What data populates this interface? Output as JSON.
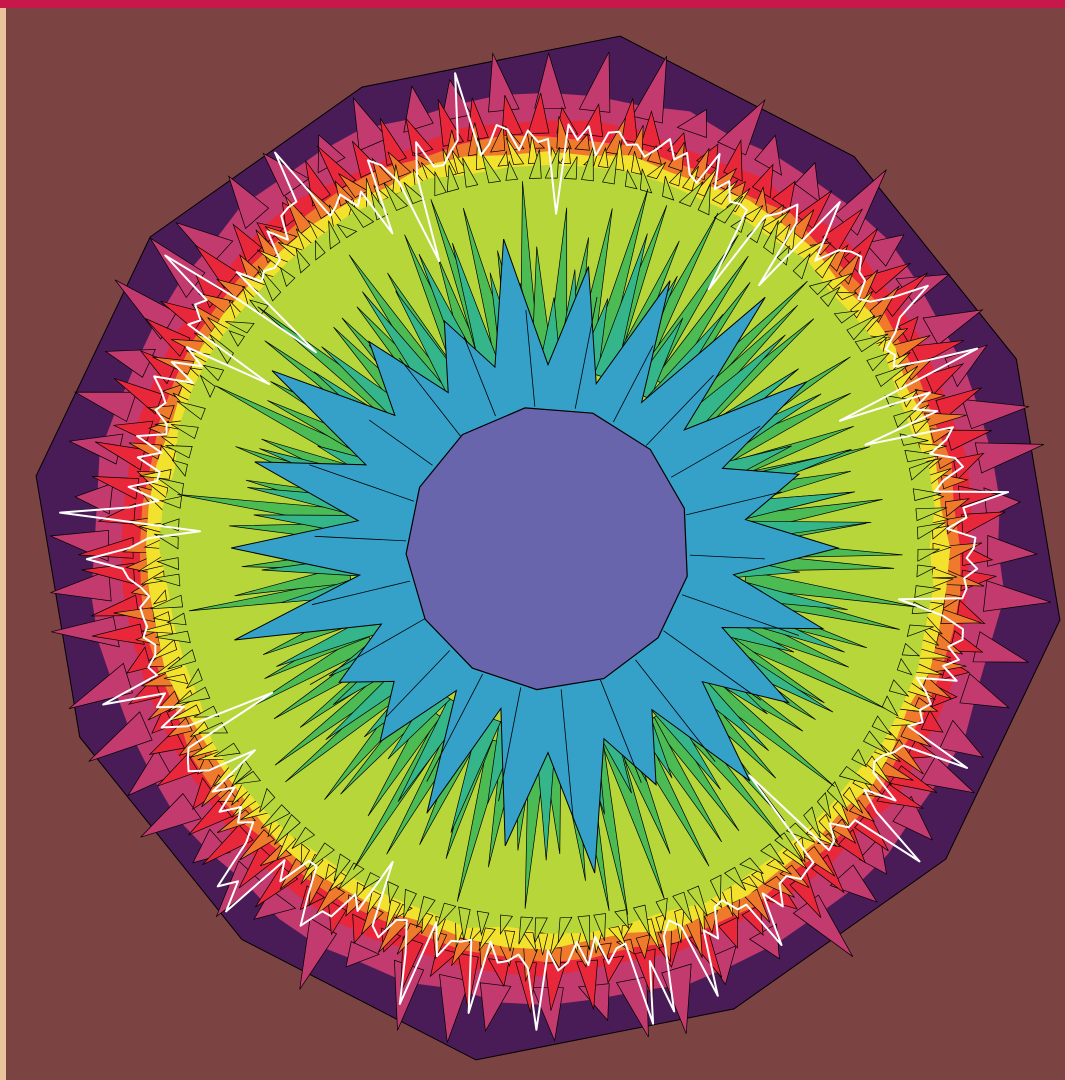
{
  "colors": {
    "background": "#7c4343",
    "top_bar": "#c8174a",
    "left_edge": "#e9c49a",
    "outer_ring": "#4a1c57",
    "petal_magenta": "#c23a6e",
    "petal_red": "#e8283a",
    "petal_orange": "#f07a2c",
    "petal_yellow": "#f2e22e",
    "petal_lime": "#b7d63a",
    "petal_green": "#4dbb54",
    "petal_teal": "#35b58a",
    "inner_blue": "#35a1c9",
    "center": "#6865ad",
    "outline_white": "#ffffff",
    "edge_black": "#000000"
  },
  "layers": [
    "outer-polygon",
    "magenta-spikes",
    "red-spikes",
    "yellow-band",
    "green-spikes",
    "blue-ring",
    "center-polygon",
    "white-contour"
  ]
}
